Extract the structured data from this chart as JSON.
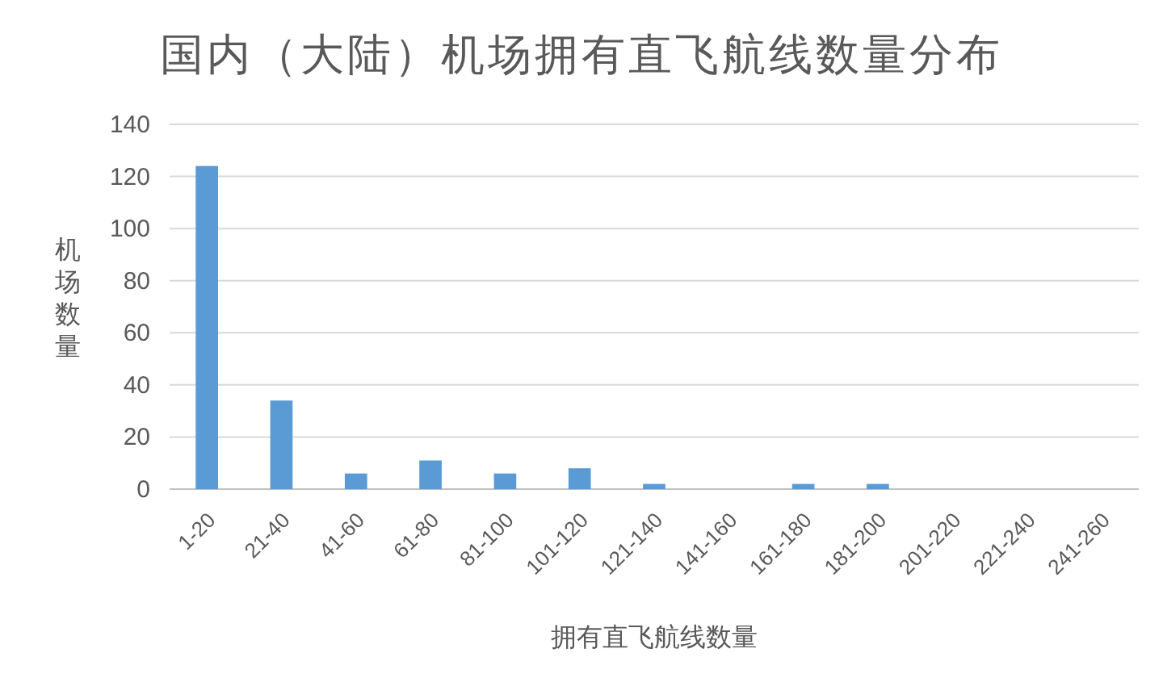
{
  "chart_data": {
    "type": "bar",
    "title": "国内（大陆）机场拥有直飞航线数量分布",
    "xlabel": "拥有直飞航线数量",
    "ylabel": "机场数量",
    "categories": [
      "1-20",
      "21-40",
      "41-60",
      "61-80",
      "81-100",
      "101-120",
      "121-140",
      "141-160",
      "161-180",
      "181-200",
      "201-220",
      "221-240",
      "241-260"
    ],
    "values": [
      124,
      34,
      6,
      11,
      6,
      8,
      2,
      0,
      2,
      2,
      0,
      0,
      0
    ],
    "color": "#5b9bd5",
    "ylim": [
      0,
      140
    ],
    "yticks": [
      0,
      20,
      40,
      60,
      80,
      100,
      120,
      140
    ],
    "grid": "y"
  }
}
